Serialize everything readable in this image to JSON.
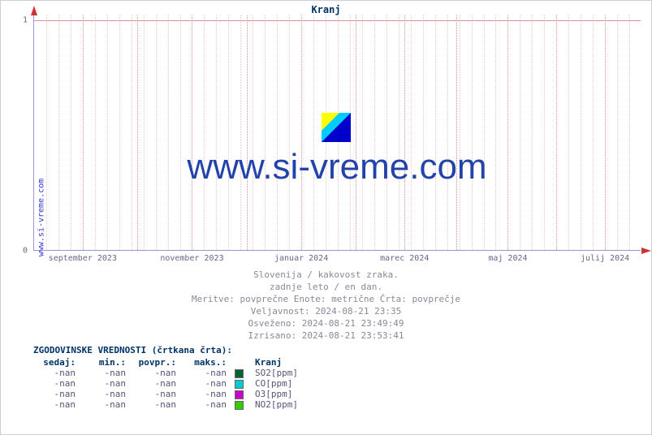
{
  "chart": {
    "title": "Kranj",
    "type": "line",
    "ylabel_outer": "www.si-vreme.com",
    "ylim": [
      0,
      1
    ],
    "yticks": [
      {
        "value": 0,
        "label": "0",
        "pos_pct": 100
      },
      {
        "value": 1,
        "label": "1",
        "pos_pct": 2
      }
    ],
    "xticks": [
      {
        "label": "september 2023",
        "pos_pct": 8
      },
      {
        "label": "november 2023",
        "pos_pct": 26
      },
      {
        "label": "januar 2024",
        "pos_pct": 44
      },
      {
        "label": "marec 2024",
        "pos_pct": 61
      },
      {
        "label": "maj 2024",
        "pos_pct": 78
      },
      {
        "label": "julij 2024",
        "pos_pct": 94
      }
    ],
    "grid_minor_step_pct": 2.0,
    "grid_major_positions_pct": [
      8,
      17,
      26,
      35,
      44,
      53,
      61,
      69.5,
      78,
      86,
      94
    ],
    "grid_color": "#f0dcdc",
    "axis_color": "#cc3333",
    "watermark_text": "www.si-vreme.com",
    "watermark_color": "#2244aa",
    "logo_colors": {
      "yellow": "#ffff00",
      "cyan": "#00ccff",
      "blue": "#0000cc"
    }
  },
  "caption": {
    "line1": "Slovenija / kakovost zraka.",
    "line2": "zadnje leto / en dan.",
    "line3": "Meritve: povprečne  Enote: metrične  Črta: povprečje",
    "line4": "Veljavnost: 2024-08-21 23:35",
    "line5": "Osveženo: 2024-08-21 23:49:49",
    "line6": "Izrisano: 2024-08-21 23:53:41"
  },
  "history": {
    "title": "ZGODOVINSKE VREDNOSTI (črtkana črta):",
    "columns": [
      "sedaj:",
      "min.:",
      "povpr.:",
      "maks.:"
    ],
    "location_header": "Kranj",
    "rows": [
      {
        "values": [
          "-nan",
          "-nan",
          "-nan",
          "-nan"
        ],
        "series": "SO2[ppm]",
        "color": "#006633"
      },
      {
        "values": [
          "-nan",
          "-nan",
          "-nan",
          "-nan"
        ],
        "series": "CO[ppm]",
        "color": "#00cccc"
      },
      {
        "values": [
          "-nan",
          "-nan",
          "-nan",
          "-nan"
        ],
        "series": "O3[ppm]",
        "color": "#cc00cc"
      },
      {
        "values": [
          "-nan",
          "-nan",
          "-nan",
          "-nan"
        ],
        "series": "NO2[ppm]",
        "color": "#33cc00"
      }
    ]
  }
}
